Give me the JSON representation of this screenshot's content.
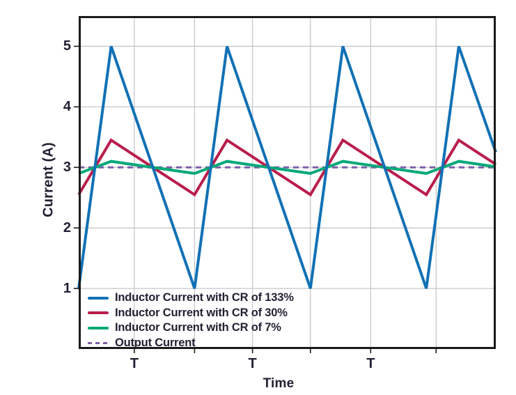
{
  "figure": {
    "background": "#ffffff",
    "border_color": "#1a1a1a",
    "gridline_color": "#c7c7cd",
    "tick_color": "#1a1a1a",
    "text_color": "#231f33"
  },
  "chart_data": {
    "type": "line",
    "title": "",
    "xlabel": "Time",
    "ylabel": "Current (A)",
    "x_unit": "T (switching period)",
    "x_range_T": [
      0,
      3.6
    ],
    "y_range": [
      0,
      5.5
    ],
    "grid": true,
    "legend_position": "inside lower-left",
    "y_ticks": [
      1,
      2,
      3,
      4,
      5
    ],
    "x_gridlines_T": [
      0.48,
      1.0,
      1.5,
      2.0,
      2.52,
      3.085
    ],
    "x_tick_labels": [
      {
        "t": 0.48,
        "label": "T"
      },
      {
        "t": 1.5,
        "label": "T"
      },
      {
        "t": 2.52,
        "label": "T"
      }
    ],
    "output_current_A": 3,
    "series": [
      {
        "name": "Inductor Current with CR of 133%",
        "color": "#1171b5",
        "style": "solid",
        "peak_A": 5,
        "trough_A": 1,
        "points": [
          [
            0,
            1
          ],
          [
            0.28,
            5
          ],
          [
            1,
            1
          ],
          [
            1.28,
            5
          ],
          [
            2,
            1
          ],
          [
            2.28,
            5
          ],
          [
            3,
            1
          ],
          [
            3.28,
            5
          ],
          [
            3.6,
            3.25
          ]
        ]
      },
      {
        "name": "Inductor Current with CR of 30%",
        "color": "#b91e4c",
        "style": "solid",
        "peak_A": 3.45,
        "trough_A": 2.55,
        "points": [
          [
            0,
            2.55
          ],
          [
            0.28,
            3.45
          ],
          [
            1,
            2.55
          ],
          [
            1.28,
            3.45
          ],
          [
            2,
            2.55
          ],
          [
            2.28,
            3.45
          ],
          [
            3,
            2.55
          ],
          [
            3.28,
            3.45
          ],
          [
            3.6,
            3.05
          ]
        ]
      },
      {
        "name": "Inductor Current with CR of 7%",
        "color": "#00a878",
        "style": "solid",
        "peak_A": 3.1,
        "trough_A": 2.9,
        "points": [
          [
            0,
            2.9
          ],
          [
            0.28,
            3.1
          ],
          [
            1,
            2.9
          ],
          [
            1.28,
            3.1
          ],
          [
            2,
            2.9
          ],
          [
            2.28,
            3.1
          ],
          [
            3,
            2.9
          ],
          [
            3.28,
            3.1
          ],
          [
            3.6,
            3.01
          ]
        ]
      },
      {
        "name": "Output Current",
        "color": "#7c5fa8",
        "style": "dashed",
        "value_A": 3,
        "points": [
          [
            0,
            3
          ],
          [
            3.6,
            3
          ]
        ]
      }
    ]
  }
}
